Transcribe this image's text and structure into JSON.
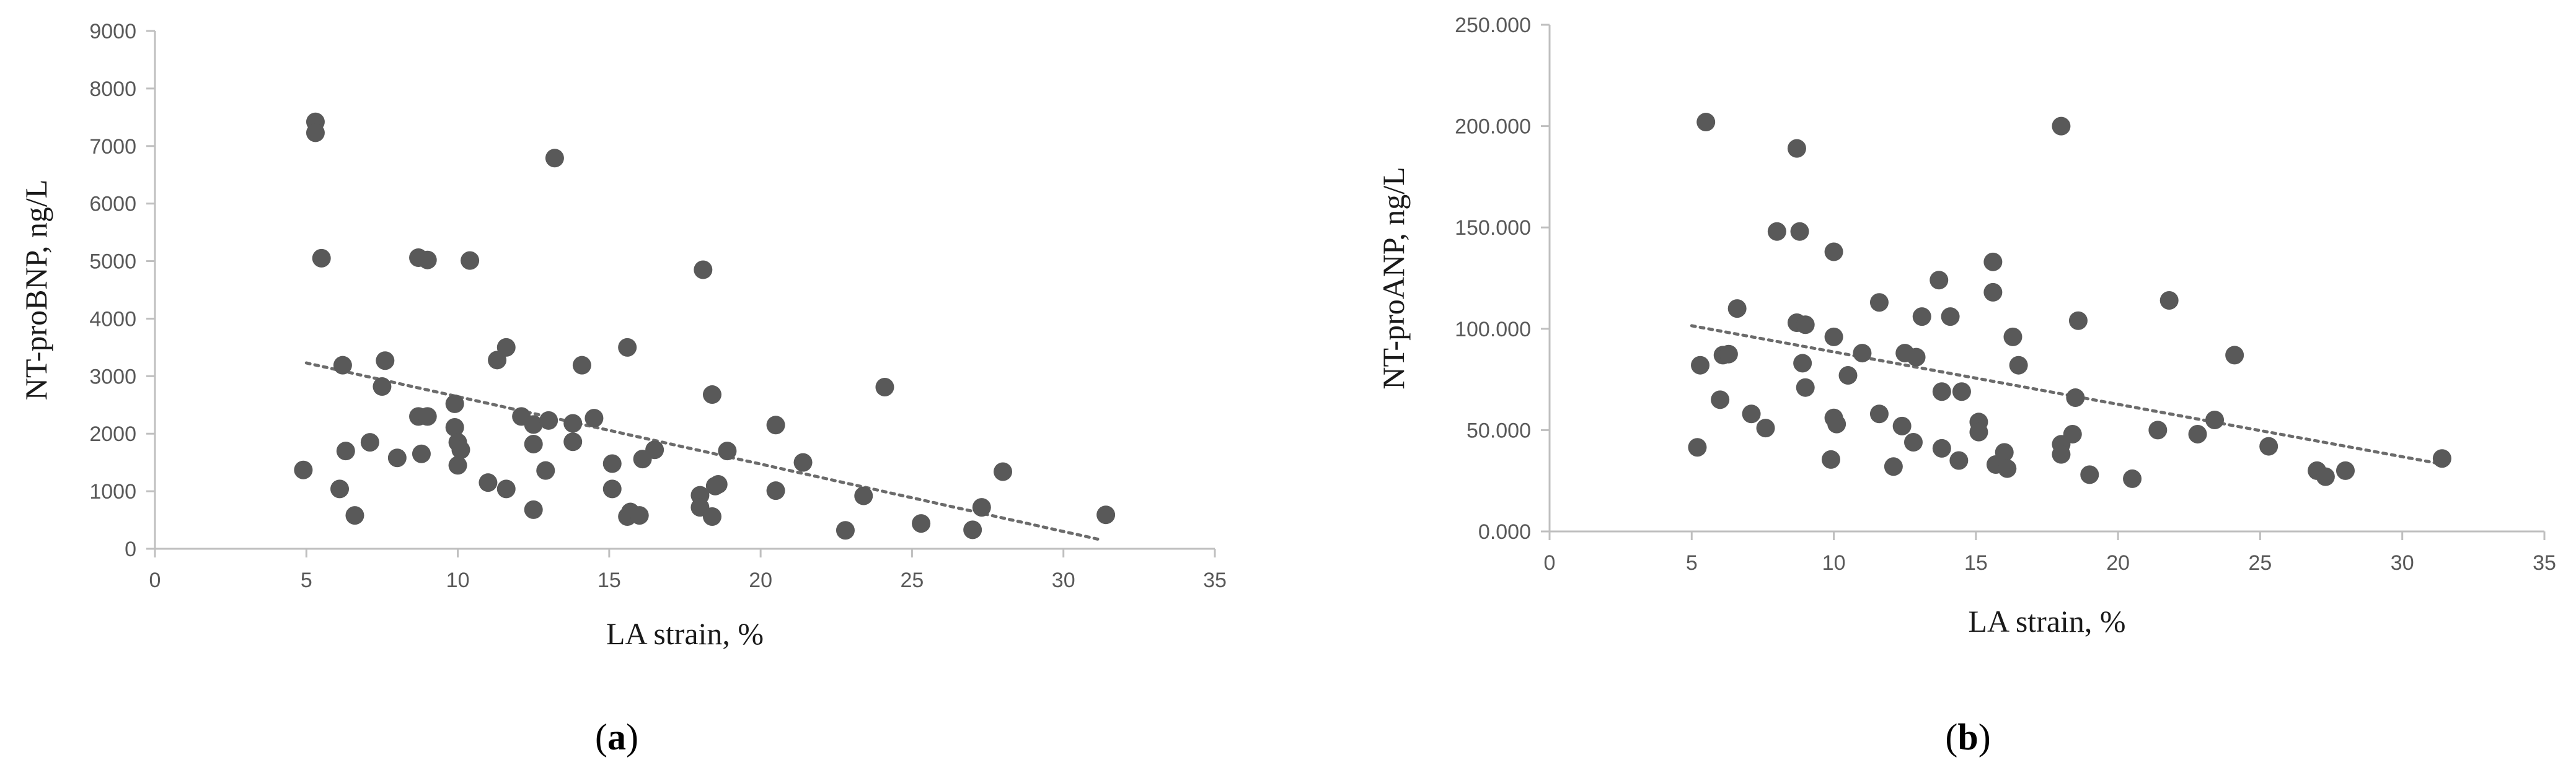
{
  "chart_data": [
    {
      "type": "scatter",
      "panel_label": "(a)",
      "panel_letter": "a",
      "xlabel": "LA strain, %",
      "ylabel": "NT-proBNP, ng/L",
      "xlim": [
        0,
        35
      ],
      "ylim": [
        0,
        9000
      ],
      "xticks": [
        0,
        5,
        10,
        15,
        20,
        25,
        30,
        35
      ],
      "xtick_labels": [
        "0",
        "5",
        "10",
        "15",
        "20",
        "25",
        "30",
        "35"
      ],
      "yticks": [
        0,
        1000,
        2000,
        3000,
        4000,
        5000,
        6000,
        7000,
        8000,
        9000
      ],
      "ytick_labels": [
        "0",
        "1000",
        "2000",
        "3000",
        "4000",
        "5000",
        "6000",
        "7000",
        "8000",
        "9000"
      ],
      "marker_color": "#595959",
      "trendline": {
        "style": "dotted",
        "from": [
          5.0,
          3230
        ],
        "to": [
          31.2,
          160
        ]
      },
      "points": [
        {
          "x": 4.9,
          "y": 1370
        },
        {
          "x": 5.3,
          "y": 7420
        },
        {
          "x": 5.3,
          "y": 7230
        },
        {
          "x": 5.5,
          "y": 5050
        },
        {
          "x": 6.1,
          "y": 1040
        },
        {
          "x": 6.2,
          "y": 3190
        },
        {
          "x": 6.3,
          "y": 1700
        },
        {
          "x": 6.6,
          "y": 580
        },
        {
          "x": 7.1,
          "y": 1850
        },
        {
          "x": 7.5,
          "y": 2820
        },
        {
          "x": 7.6,
          "y": 3270
        },
        {
          "x": 8.0,
          "y": 1580
        },
        {
          "x": 8.7,
          "y": 5060
        },
        {
          "x": 8.7,
          "y": 2300
        },
        {
          "x": 8.8,
          "y": 1650
        },
        {
          "x": 9.0,
          "y": 2300
        },
        {
          "x": 9.0,
          "y": 5020
        },
        {
          "x": 9.9,
          "y": 2520
        },
        {
          "x": 9.9,
          "y": 2110
        },
        {
          "x": 10.0,
          "y": 1850
        },
        {
          "x": 10.0,
          "y": 1450
        },
        {
          "x": 10.1,
          "y": 1720
        },
        {
          "x": 10.4,
          "y": 5010
        },
        {
          "x": 11.0,
          "y": 1150
        },
        {
          "x": 11.3,
          "y": 3280
        },
        {
          "x": 11.6,
          "y": 3500
        },
        {
          "x": 11.6,
          "y": 1040
        },
        {
          "x": 12.1,
          "y": 2300
        },
        {
          "x": 12.5,
          "y": 2160
        },
        {
          "x": 12.5,
          "y": 1820
        },
        {
          "x": 12.5,
          "y": 680
        },
        {
          "x": 12.9,
          "y": 1360
        },
        {
          "x": 13.0,
          "y": 2230
        },
        {
          "x": 13.2,
          "y": 6790
        },
        {
          "x": 13.8,
          "y": 2180
        },
        {
          "x": 13.8,
          "y": 1860
        },
        {
          "x": 14.1,
          "y": 3190
        },
        {
          "x": 14.5,
          "y": 2270
        },
        {
          "x": 15.1,
          "y": 1480
        },
        {
          "x": 15.1,
          "y": 1040
        },
        {
          "x": 15.6,
          "y": 3500
        },
        {
          "x": 15.6,
          "y": 560
        },
        {
          "x": 15.7,
          "y": 640
        },
        {
          "x": 16.0,
          "y": 580
        },
        {
          "x": 16.1,
          "y": 1560
        },
        {
          "x": 16.5,
          "y": 1720
        },
        {
          "x": 18.0,
          "y": 930
        },
        {
          "x": 18.0,
          "y": 720
        },
        {
          "x": 18.1,
          "y": 4850
        },
        {
          "x": 18.4,
          "y": 2680
        },
        {
          "x": 18.4,
          "y": 560
        },
        {
          "x": 18.5,
          "y": 1090
        },
        {
          "x": 18.6,
          "y": 1120
        },
        {
          "x": 18.9,
          "y": 1700
        },
        {
          "x": 20.5,
          "y": 2150
        },
        {
          "x": 20.5,
          "y": 1010
        },
        {
          "x": 21.4,
          "y": 1500
        },
        {
          "x": 22.8,
          "y": 320
        },
        {
          "x": 23.4,
          "y": 920
        },
        {
          "x": 24.1,
          "y": 2810
        },
        {
          "x": 25.3,
          "y": 440
        },
        {
          "x": 27.0,
          "y": 330
        },
        {
          "x": 27.3,
          "y": 720
        },
        {
          "x": 28.0,
          "y": 1340
        },
        {
          "x": 31.4,
          "y": 590
        }
      ]
    },
    {
      "type": "scatter",
      "panel_label": "(b)",
      "panel_letter": "b",
      "xlabel": "LA strain, %",
      "ylabel": "NT-proANP, ng/L",
      "xlim": [
        0,
        35
      ],
      "ylim": [
        0,
        250
      ],
      "xticks": [
        0,
        5,
        10,
        15,
        20,
        25,
        30,
        35
      ],
      "xtick_labels": [
        "0",
        "5",
        "10",
        "15",
        "20",
        "25",
        "30",
        "35"
      ],
      "yticks": [
        0,
        50,
        100,
        150,
        200,
        250
      ],
      "ytick_labels": [
        "0.000",
        "50.000",
        "100.000",
        "150.000",
        "200.000",
        "250.000"
      ],
      "marker_color": "#595959",
      "trendline": {
        "style": "dotted",
        "from": [
          5.0,
          101.5
        ],
        "to": [
          31.3,
          33.5
        ]
      },
      "points": [
        {
          "x": 5.2,
          "y": 41.5
        },
        {
          "x": 5.3,
          "y": 82
        },
        {
          "x": 5.5,
          "y": 202
        },
        {
          "x": 6.0,
          "y": 65
        },
        {
          "x": 6.1,
          "y": 87
        },
        {
          "x": 6.3,
          "y": 87.5
        },
        {
          "x": 6.6,
          "y": 110
        },
        {
          "x": 7.1,
          "y": 58
        },
        {
          "x": 7.6,
          "y": 51
        },
        {
          "x": 8.0,
          "y": 148
        },
        {
          "x": 8.7,
          "y": 189
        },
        {
          "x": 8.7,
          "y": 103
        },
        {
          "x": 8.8,
          "y": 148
        },
        {
          "x": 8.9,
          "y": 83
        },
        {
          "x": 9.0,
          "y": 71
        },
        {
          "x": 9.0,
          "y": 102
        },
        {
          "x": 9.9,
          "y": 35.5
        },
        {
          "x": 10.0,
          "y": 138
        },
        {
          "x": 10.0,
          "y": 96
        },
        {
          "x": 10.0,
          "y": 56
        },
        {
          "x": 10.1,
          "y": 53
        },
        {
          "x": 10.5,
          "y": 77
        },
        {
          "x": 11.0,
          "y": 88
        },
        {
          "x": 11.6,
          "y": 113
        },
        {
          "x": 11.6,
          "y": 58
        },
        {
          "x": 12.1,
          "y": 32
        },
        {
          "x": 12.4,
          "y": 52
        },
        {
          "x": 12.5,
          "y": 88
        },
        {
          "x": 12.8,
          "y": 44
        },
        {
          "x": 12.9,
          "y": 86
        },
        {
          "x": 13.1,
          "y": 106
        },
        {
          "x": 13.7,
          "y": 124
        },
        {
          "x": 13.8,
          "y": 69
        },
        {
          "x": 13.8,
          "y": 41
        },
        {
          "x": 14.1,
          "y": 106
        },
        {
          "x": 14.4,
          "y": 35
        },
        {
          "x": 14.5,
          "y": 69
        },
        {
          "x": 15.1,
          "y": 54
        },
        {
          "x": 15.1,
          "y": 49
        },
        {
          "x": 15.6,
          "y": 133
        },
        {
          "x": 15.6,
          "y": 118
        },
        {
          "x": 15.7,
          "y": 33
        },
        {
          "x": 16.0,
          "y": 39
        },
        {
          "x": 16.1,
          "y": 31
        },
        {
          "x": 16.3,
          "y": 96
        },
        {
          "x": 16.5,
          "y": 82
        },
        {
          "x": 18.0,
          "y": 200
        },
        {
          "x": 18.0,
          "y": 43
        },
        {
          "x": 18.0,
          "y": 38
        },
        {
          "x": 18.4,
          "y": 48
        },
        {
          "x": 18.5,
          "y": 66
        },
        {
          "x": 18.6,
          "y": 104
        },
        {
          "x": 19.0,
          "y": 28
        },
        {
          "x": 20.5,
          "y": 26
        },
        {
          "x": 21.4,
          "y": 50
        },
        {
          "x": 21.8,
          "y": 114
        },
        {
          "x": 22.8,
          "y": 48
        },
        {
          "x": 23.4,
          "y": 55
        },
        {
          "x": 24.1,
          "y": 87
        },
        {
          "x": 25.3,
          "y": 42
        },
        {
          "x": 27.0,
          "y": 30
        },
        {
          "x": 27.3,
          "y": 27
        },
        {
          "x": 28.0,
          "y": 30
        },
        {
          "x": 31.4,
          "y": 36
        }
      ]
    }
  ]
}
